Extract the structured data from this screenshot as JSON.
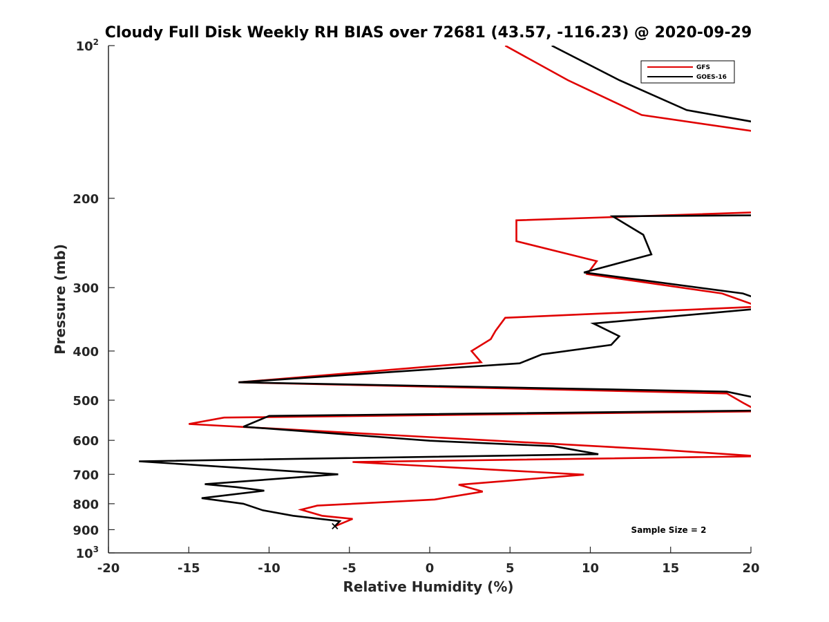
{
  "chart_data": {
    "type": "line",
    "title": "Cloudy Full Disk Weekly RH BIAS over 72681 (43.57, -116.23) @ 2020-09-29",
    "xlabel": "Relative Humidity (%)",
    "ylabel": "Pressure (mb)",
    "xlim": [
      -20,
      20
    ],
    "ylim": [
      100,
      1000
    ],
    "y_scale": "log",
    "y_reversed": true,
    "grid": false,
    "legend_position": "top-right",
    "x_ticks": [
      -20,
      -15,
      -10,
      -5,
      0,
      5,
      10,
      15,
      20
    ],
    "x_tick_labels": [
      "-20",
      "-15",
      "-10",
      "-5",
      "0",
      "5",
      "10",
      "15",
      "20"
    ],
    "y_ticks": [
      {
        "value": 100,
        "base": "10",
        "exp": "2"
      },
      {
        "value": 200,
        "label": "200"
      },
      {
        "value": 300,
        "label": "300"
      },
      {
        "value": 400,
        "label": "400"
      },
      {
        "value": 500,
        "label": "500"
      },
      {
        "value": 600,
        "label": "600"
      },
      {
        "value": 700,
        "label": "700"
      },
      {
        "value": 800,
        "label": "800"
      },
      {
        "value": 900,
        "label": "900"
      },
      {
        "value": 1000,
        "base": "10",
        "exp": "3"
      }
    ],
    "series": [
      {
        "name": "GFS",
        "color": "#e00000",
        "points": [
          [
            4.7,
            100
          ],
          [
            8.6,
            117
          ],
          [
            13.2,
            137
          ],
          [
            20.5,
            148
          ],
          [
            20.5,
            213
          ],
          [
            5.4,
            221
          ],
          [
            5.4,
            243
          ],
          [
            10.4,
            266
          ],
          [
            9.8,
            282
          ],
          [
            18.2,
            308
          ],
          [
            20.5,
            327
          ],
          [
            4.7,
            344
          ],
          [
            4.1,
            365
          ],
          [
            3.8,
            379
          ],
          [
            2.6,
            400
          ],
          [
            3.2,
            421
          ],
          [
            -11.9,
            461
          ],
          [
            18.5,
            485
          ],
          [
            19.5,
            506
          ],
          [
            20.5,
            526
          ],
          [
            -12.8,
            541
          ],
          [
            -15.0,
            557
          ],
          [
            14.0,
            625
          ],
          [
            20.5,
            645
          ],
          [
            -4.8,
            662
          ],
          [
            9.6,
            701
          ],
          [
            1.8,
            734
          ],
          [
            3.3,
            757
          ],
          [
            0.3,
            785
          ],
          [
            -7.0,
            807
          ],
          [
            -8.0,
            822
          ],
          [
            -6.7,
            845
          ],
          [
            -4.8,
            857
          ],
          [
            -5.9,
            886
          ]
        ]
      },
      {
        "name": "GOES-16",
        "color": "#000000",
        "points": [
          [
            7.6,
            100
          ],
          [
            11.8,
            117
          ],
          [
            16.0,
            134
          ],
          [
            20.5,
            142
          ],
          [
            20.5,
            216
          ],
          [
            11.4,
            217
          ],
          [
            13.3,
            236
          ],
          [
            13.8,
            258
          ],
          [
            9.6,
            280
          ],
          [
            19.5,
            308
          ],
          [
            20.5,
            316
          ],
          [
            20.5,
            330
          ],
          [
            10.2,
            353
          ],
          [
            11.8,
            374
          ],
          [
            11.3,
            389
          ],
          [
            7.0,
            406
          ],
          [
            5.6,
            423
          ],
          [
            -6.5,
            449
          ],
          [
            -11.9,
            461
          ],
          [
            18.5,
            481
          ],
          [
            20.5,
            496
          ],
          [
            20.5,
            524
          ],
          [
            -10.0,
            537
          ],
          [
            -11.6,
            564
          ],
          [
            0.0,
            601
          ],
          [
            7.7,
            616
          ],
          [
            10.5,
            639
          ],
          [
            -18.1,
            660
          ],
          [
            -5.7,
            700
          ],
          [
            -14.0,
            732
          ],
          [
            -12.0,
            742
          ],
          [
            -10.3,
            754
          ],
          [
            -14.2,
            780
          ],
          [
            -11.6,
            800
          ],
          [
            -10.4,
            824
          ],
          [
            -8.5,
            845
          ],
          [
            -5.6,
            866
          ],
          [
            -5.9,
            886
          ]
        ]
      }
    ],
    "annotations": [
      {
        "text": "Sample Size = 2",
        "x": 13.5,
        "y": 885
      }
    ]
  }
}
